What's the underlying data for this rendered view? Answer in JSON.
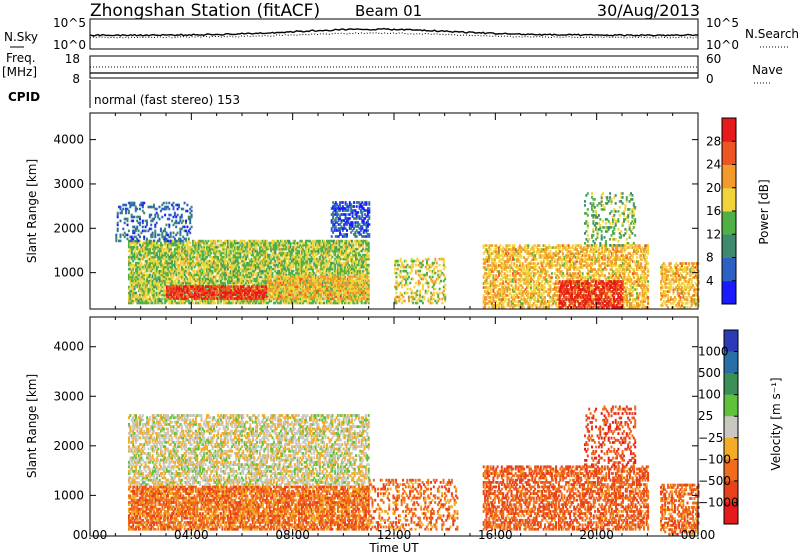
{
  "header": {
    "station": "Zhongshan Station (fitACF)",
    "beam": "Beam 01",
    "date": "30/Aug/2013"
  },
  "status_panels": {
    "nsky_label": "N.Sky",
    "nsearch_label": "N.Search",
    "noise_ticks_left": [
      "10^5",
      "10^0"
    ],
    "noise_ticks_right": [
      "10^5",
      "10^0"
    ],
    "freq_label": "Freq.",
    "freq_unit": "[MHz]",
    "freq_ticks": [
      "18",
      "8"
    ],
    "nave_ticks": [
      "60",
      "0"
    ],
    "nave_label": "Nave",
    "cpid_label": "CPID",
    "cpid_text": "normal (fast stereo) 153"
  },
  "chart_data": [
    {
      "type": "heatmap",
      "name": "power",
      "ylabel": "Slant Range [km]",
      "yticks": [
        "1000",
        "2000",
        "3000",
        "4000"
      ],
      "ylim": [
        180,
        4600
      ],
      "xlim_hours": [
        0,
        24
      ],
      "colorbar_label": "Power [dB]",
      "colorbar_ticks": [
        "4",
        "8",
        "12",
        "16",
        "20",
        "24",
        "28"
      ],
      "colors": [
        "#1a1aff",
        "#2d62c4",
        "#3d8a6e",
        "#4fb046",
        "#f1d33b",
        "#f39a2c",
        "#ed5522",
        "#e61a1a"
      ],
      "scatter_blocks": [
        {
          "t": [
            1.5,
            11
          ],
          "r": [
            300,
            1700
          ],
          "level": 3.5,
          "density": 0.75
        },
        {
          "t": [
            1,
            4
          ],
          "r": [
            1700,
            2600
          ],
          "level": 1.2,
          "density": 0.25
        },
        {
          "t": [
            3,
            7
          ],
          "r": [
            400,
            700
          ],
          "level": 6.5,
          "density": 0.8
        },
        {
          "t": [
            7,
            11
          ],
          "r": [
            400,
            900
          ],
          "level": 4.5,
          "density": 0.7
        },
        {
          "t": [
            9.5,
            11
          ],
          "r": [
            1800,
            2600
          ],
          "level": 0.8,
          "density": 0.5
        },
        {
          "t": [
            12,
            14
          ],
          "r": [
            300,
            1300
          ],
          "level": 4.0,
          "density": 0.35
        },
        {
          "t": [
            15.5,
            22
          ],
          "r": [
            200,
            1600
          ],
          "level": 4.5,
          "density": 0.55
        },
        {
          "t": [
            18.5,
            21
          ],
          "r": [
            200,
            800
          ],
          "level": 6.8,
          "density": 0.6
        },
        {
          "t": [
            19.5,
            21.5
          ],
          "r": [
            1600,
            2800
          ],
          "level": 3.0,
          "density": 0.25
        },
        {
          "t": [
            22.5,
            24
          ],
          "r": [
            200,
            1200
          ],
          "level": 4.5,
          "density": 0.5
        }
      ]
    },
    {
      "type": "heatmap",
      "name": "velocity",
      "xlabel": "Time UT",
      "ylabel": "Slant Range [km]",
      "yticks": [
        "1000",
        "2000",
        "3000",
        "4000"
      ],
      "xticks": [
        "00:00",
        "04:00",
        "08:00",
        "12:00",
        "16:00",
        "20:00",
        "00:00"
      ],
      "ylim": [
        180,
        4600
      ],
      "xlim_hours": [
        0,
        24
      ],
      "colorbar_label": "Velocity [m s⁻¹]",
      "colorbar_ticks": [
        "1000",
        "500",
        "100",
        "25",
        "−25",
        "−100",
        "−500",
        "−1000"
      ],
      "colors": [
        "#2b3ab5",
        "#2a6ea8",
        "#3d8f58",
        "#5fc23a",
        "#c8c8c0",
        "#f3ac28",
        "#ef6d1d",
        "#e8401a",
        "#e61a1a"
      ],
      "scatter_blocks": [
        {
          "t": [
            1.5,
            11
          ],
          "r": [
            300,
            1200
          ],
          "level": 6.0,
          "density": 0.75
        },
        {
          "t": [
            1.5,
            11
          ],
          "r": [
            1200,
            2600
          ],
          "level": 4.2,
          "density": 0.55
        },
        {
          "t": [
            11,
            14.5
          ],
          "r": [
            300,
            1300
          ],
          "level": 6.0,
          "density": 0.3
        },
        {
          "t": [
            15.5,
            22
          ],
          "r": [
            300,
            1600
          ],
          "level": 6.4,
          "density": 0.55
        },
        {
          "t": [
            19.5,
            21.5
          ],
          "r": [
            1600,
            2800
          ],
          "level": 6.8,
          "density": 0.25
        },
        {
          "t": [
            22.5,
            24
          ],
          "r": [
            200,
            1200
          ],
          "level": 6.2,
          "density": 0.5
        }
      ]
    }
  ]
}
